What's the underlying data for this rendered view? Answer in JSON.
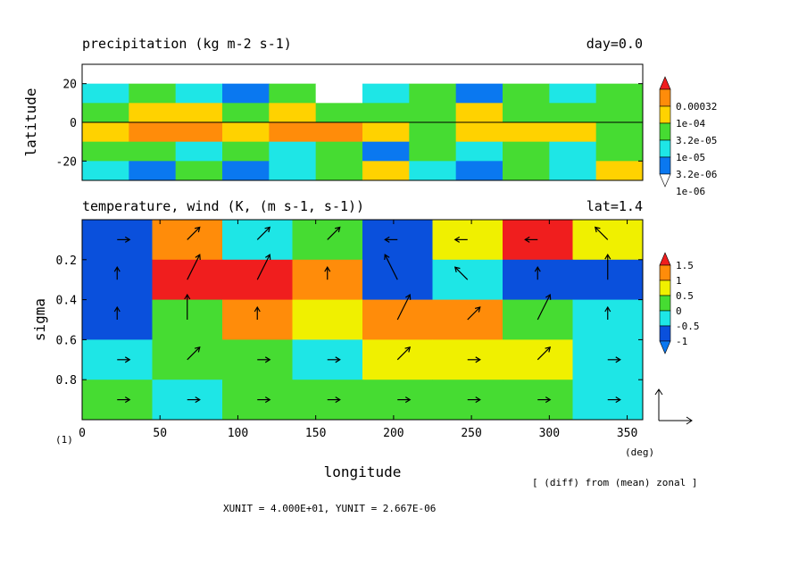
{
  "colors": {
    "precip_levels": [
      "#ffffff",
      "#0a78f0",
      "#1ee6e6",
      "#46dc32",
      "#ffd200",
      "#ff8c0a",
      "#f01e1e"
    ],
    "temp_levels": [
      "#0a78f0",
      "#0a50dc",
      "#1ee6e6",
      "#46dc32",
      "#f0f000",
      "#ff8c0a",
      "#f01e1e"
    ]
  },
  "chart_data": [
    {
      "id": "precipitation",
      "type": "heatmap",
      "title": "precipitation (kg m-2 s-1)",
      "annotation": "day=0.0",
      "xlabel": "",
      "ylabel": "latitude",
      "xlim": [
        0,
        360
      ],
      "ylim": [
        -30,
        30
      ],
      "yticks": [
        -20,
        0,
        20
      ],
      "reference_line_y": 0,
      "colorbar": {
        "labels": [
          "1e-06",
          "3.2e-06",
          "1e-05",
          "3.2e-05",
          "1e-04",
          "0.00032"
        ]
      },
      "cells": [
        {
          "x": 15,
          "y": 15,
          "v": 2
        },
        {
          "x": 45,
          "y": 15,
          "v": 3
        },
        {
          "x": 75,
          "y": 15,
          "v": 2
        },
        {
          "x": 105,
          "y": 15,
          "v": 1
        },
        {
          "x": 135,
          "y": 15,
          "v": 3
        },
        {
          "x": 165,
          "y": 15,
          "v": 0
        },
        {
          "x": 195,
          "y": 15,
          "v": 2
        },
        {
          "x": 225,
          "y": 15,
          "v": 3
        },
        {
          "x": 255,
          "y": 15,
          "v": 1
        },
        {
          "x": 285,
          "y": 15,
          "v": 3
        },
        {
          "x": 315,
          "y": 15,
          "v": 2
        },
        {
          "x": 345,
          "y": 15,
          "v": 3
        },
        {
          "x": 15,
          "y": 5,
          "v": 3
        },
        {
          "x": 45,
          "y": 5,
          "v": 4
        },
        {
          "x": 75,
          "y": 5,
          "v": 4
        },
        {
          "x": 105,
          "y": 5,
          "v": 3
        },
        {
          "x": 135,
          "y": 5,
          "v": 4
        },
        {
          "x": 165,
          "y": 5,
          "v": 3
        },
        {
          "x": 195,
          "y": 5,
          "v": 3
        },
        {
          "x": 225,
          "y": 5,
          "v": 3
        },
        {
          "x": 255,
          "y": 5,
          "v": 4
        },
        {
          "x": 285,
          "y": 5,
          "v": 3
        },
        {
          "x": 315,
          "y": 5,
          "v": 3
        },
        {
          "x": 345,
          "y": 5,
          "v": 3
        },
        {
          "x": 15,
          "y": -5,
          "v": 4
        },
        {
          "x": 45,
          "y": -5,
          "v": 5
        },
        {
          "x": 75,
          "y": -5,
          "v": 5
        },
        {
          "x": 105,
          "y": -5,
          "v": 4
        },
        {
          "x": 135,
          "y": -5,
          "v": 5
        },
        {
          "x": 165,
          "y": -5,
          "v": 5
        },
        {
          "x": 195,
          "y": -5,
          "v": 4
        },
        {
          "x": 225,
          "y": -5,
          "v": 3
        },
        {
          "x": 255,
          "y": -5,
          "v": 4
        },
        {
          "x": 285,
          "y": -5,
          "v": 4
        },
        {
          "x": 315,
          "y": -5,
          "v": 4
        },
        {
          "x": 345,
          "y": -5,
          "v": 3
        },
        {
          "x": 15,
          "y": -15,
          "v": 3
        },
        {
          "x": 45,
          "y": -15,
          "v": 3
        },
        {
          "x": 75,
          "y": -15,
          "v": 2
        },
        {
          "x": 105,
          "y": -15,
          "v": 3
        },
        {
          "x": 135,
          "y": -15,
          "v": 2
        },
        {
          "x": 165,
          "y": -15,
          "v": 3
        },
        {
          "x": 195,
          "y": -15,
          "v": 1
        },
        {
          "x": 225,
          "y": -15,
          "v": 3
        },
        {
          "x": 255,
          "y": -15,
          "v": 2
        },
        {
          "x": 285,
          "y": -15,
          "v": 3
        },
        {
          "x": 315,
          "y": -15,
          "v": 2
        },
        {
          "x": 345,
          "y": -15,
          "v": 3
        },
        {
          "x": 15,
          "y": -25,
          "v": 2
        },
        {
          "x": 45,
          "y": -25,
          "v": 1
        },
        {
          "x": 75,
          "y": -25,
          "v": 3
        },
        {
          "x": 105,
          "y": -25,
          "v": 1
        },
        {
          "x": 135,
          "y": -25,
          "v": 2
        },
        {
          "x": 165,
          "y": -25,
          "v": 3
        },
        {
          "x": 195,
          "y": -25,
          "v": 4
        },
        {
          "x": 225,
          "y": -25,
          "v": 2
        },
        {
          "x": 255,
          "y": -25,
          "v": 1
        },
        {
          "x": 285,
          "y": -25,
          "v": 3
        },
        {
          "x": 315,
          "y": -25,
          "v": 2
        },
        {
          "x": 345,
          "y": -25,
          "v": 4
        }
      ]
    },
    {
      "id": "temperature_wind",
      "type": "heatmap",
      "title": "temperature, wind (K, (m s-1, s-1))",
      "annotation": "lat=1.4",
      "xlabel": "longitude",
      "xunit": "(deg)",
      "ylabel": "sigma",
      "xlim": [
        0,
        360
      ],
      "ylim": [
        1.0,
        0.0
      ],
      "xticks": [
        0,
        50,
        100,
        150,
        200,
        250,
        300,
        350
      ],
      "yticks": [
        0.2,
        0.4,
        0.6,
        0.8
      ],
      "colorbar": {
        "labels": [
          "-1",
          "-0.5",
          "0",
          "0.5",
          "1",
          "1.5"
        ]
      },
      "cells": [
        {
          "x": 22.5,
          "y": 0.1,
          "v": 1
        },
        {
          "x": 67.5,
          "y": 0.1,
          "v": 5
        },
        {
          "x": 112.5,
          "y": 0.1,
          "v": 2
        },
        {
          "x": 157.5,
          "y": 0.1,
          "v": 3
        },
        {
          "x": 202.5,
          "y": 0.1,
          "v": 1
        },
        {
          "x": 247.5,
          "y": 0.1,
          "v": 4
        },
        {
          "x": 292.5,
          "y": 0.1,
          "v": 6
        },
        {
          "x": 337.5,
          "y": 0.1,
          "v": 4
        },
        {
          "x": 22.5,
          "y": 0.3,
          "v": 1
        },
        {
          "x": 67.5,
          "y": 0.3,
          "v": 6
        },
        {
          "x": 112.5,
          "y": 0.3,
          "v": 6
        },
        {
          "x": 157.5,
          "y": 0.3,
          "v": 5
        },
        {
          "x": 202.5,
          "y": 0.3,
          "v": 1
        },
        {
          "x": 247.5,
          "y": 0.3,
          "v": 2
        },
        {
          "x": 292.5,
          "y": 0.3,
          "v": 1
        },
        {
          "x": 337.5,
          "y": 0.3,
          "v": 1
        },
        {
          "x": 22.5,
          "y": 0.5,
          "v": 1
        },
        {
          "x": 67.5,
          "y": 0.5,
          "v": 3
        },
        {
          "x": 112.5,
          "y": 0.5,
          "v": 5
        },
        {
          "x": 157.5,
          "y": 0.5,
          "v": 4
        },
        {
          "x": 202.5,
          "y": 0.5,
          "v": 5
        },
        {
          "x": 247.5,
          "y": 0.5,
          "v": 5
        },
        {
          "x": 292.5,
          "y": 0.5,
          "v": 3
        },
        {
          "x": 337.5,
          "y": 0.5,
          "v": 2
        },
        {
          "x": 22.5,
          "y": 0.7,
          "v": 2
        },
        {
          "x": 67.5,
          "y": 0.7,
          "v": 3
        },
        {
          "x": 112.5,
          "y": 0.7,
          "v": 3
        },
        {
          "x": 157.5,
          "y": 0.7,
          "v": 2
        },
        {
          "x": 202.5,
          "y": 0.7,
          "v": 4
        },
        {
          "x": 247.5,
          "y": 0.7,
          "v": 4
        },
        {
          "x": 292.5,
          "y": 0.7,
          "v": 4
        },
        {
          "x": 337.5,
          "y": 0.7,
          "v": 2
        },
        {
          "x": 22.5,
          "y": 0.9,
          "v": 3
        },
        {
          "x": 67.5,
          "y": 0.9,
          "v": 2
        },
        {
          "x": 112.5,
          "y": 0.9,
          "v": 3
        },
        {
          "x": 157.5,
          "y": 0.9,
          "v": 3
        },
        {
          "x": 202.5,
          "y": 0.9,
          "v": 3
        },
        {
          "x": 247.5,
          "y": 0.9,
          "v": 3
        },
        {
          "x": 292.5,
          "y": 0.9,
          "v": 3
        },
        {
          "x": 337.5,
          "y": 0.9,
          "v": 2
        }
      ],
      "vectors": {
        "xunit_label": "XUNIT = 4.000E+01, YUNIT = 2.667E-06",
        "u": [
          [
            1,
            1,
            1,
            1,
            -1,
            -1,
            -1,
            -1
          ],
          [
            0,
            1,
            1,
            0,
            -1,
            -1,
            0,
            0
          ],
          [
            0,
            0,
            0,
            0,
            1,
            1,
            1,
            0
          ],
          [
            1,
            1,
            1,
            1,
            1,
            1,
            1,
            1
          ],
          [
            1,
            1,
            1,
            1,
            1,
            1,
            1,
            1
          ]
        ],
        "w": [
          [
            0,
            1,
            1,
            1,
            0,
            0,
            0,
            1
          ],
          [
            1,
            2,
            2,
            1,
            2,
            1,
            1,
            2
          ],
          [
            1,
            2,
            1,
            0,
            2,
            1,
            2,
            1
          ],
          [
            0,
            1,
            0,
            0,
            1,
            0,
            1,
            0
          ],
          [
            0,
            0,
            0,
            0,
            0,
            0,
            0,
            0
          ]
        ]
      }
    }
  ],
  "labels": {
    "frame_index": "(1)",
    "diff_note": "[ (diff) from (mean) zonal ]",
    "vector_units": "XUNIT = 4.000E+01, YUNIT = 2.667E-06"
  }
}
